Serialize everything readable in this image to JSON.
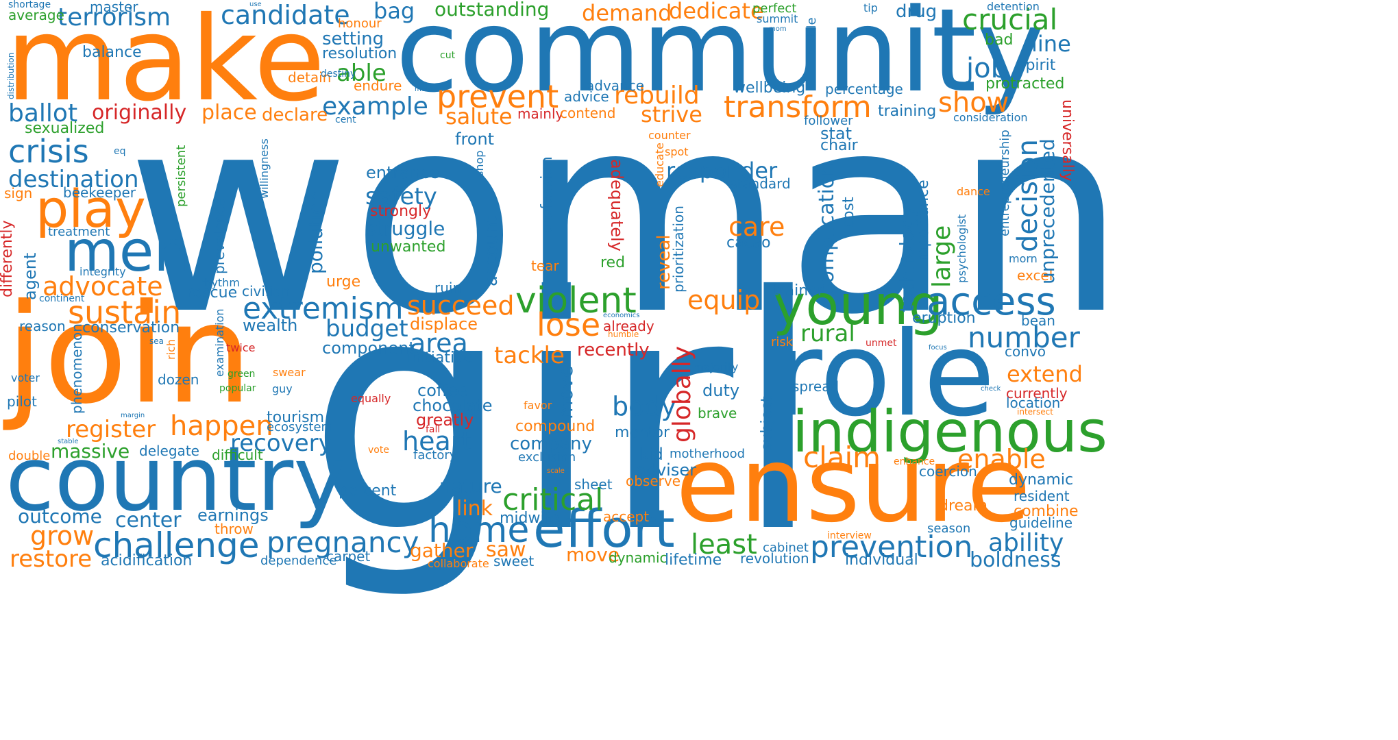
{
  "colors": {
    "blue": "#1f77b4",
    "orange": "#ff7f0e",
    "green": "#2ca02c",
    "red": "#d62728",
    "background": "#ffffff"
  },
  "words": {
    "woman": "woman",
    "girl": "girl",
    "community": "community",
    "make": "make",
    "join": "join",
    "ensure": "ensure",
    "country": "country",
    "role": "role",
    "indigenous": "indigenous",
    "young": "young",
    "effort": "effort",
    "play": "play",
    "men": "men",
    "terrorism": "terrorism",
    "candidate": "candidate",
    "bag": "bag",
    "outstanding": "outstanding",
    "demand": "demand",
    "dedicate": "dedicate",
    "crucial": "crucial",
    "drug": "drug",
    "prevent": "prevent",
    "transform": "transform",
    "rebuild": "rebuild",
    "strive": "strive",
    "show": "show",
    "job": "job",
    "example": "example",
    "salute": "salute",
    "ballot": "ballot",
    "originally": "originally",
    "place": "place",
    "declare": "declare",
    "crisis": "crisis",
    "destination": "destination",
    "advocate": "advocate",
    "sustain": "sustain",
    "extremism": "extremism",
    "succeed": "succeed",
    "violent": "violent",
    "access": "access",
    "lose": "lose",
    "budget": "budget",
    "area": "area",
    "tackle": "tackle",
    "number": "number",
    "happen": "happen",
    "register": "register",
    "massive": "massive",
    "recovery": "recovery",
    "heart": "heart",
    "claim": "claim",
    "enable": "enable",
    "critical": "critical",
    "home": "home",
    "challenge": "challenge",
    "pregnancy": "pregnancy",
    "prevention": "prevention",
    "grow": "grow",
    "restore": "restore",
    "least": "least",
    "ability": "ability",
    "boldness": "boldness",
    "decision": "decision",
    "safety": "safety",
    "struggle": "struggle",
    "responder": "responder",
    "care": "care",
    "equip": "equip",
    "rural": "rural",
    "body": "body",
    "extend": "extend",
    "line": "line",
    "setting": "setting",
    "resolution": "resolution",
    "able": "able",
    "balance": "balance",
    "average": "average",
    "master": "master",
    "shortage": "shortage",
    "use": "use",
    "honour": "honour",
    "perfect": "perfect",
    "summit": "summit",
    "tip": "tip",
    "detention": "detention",
    "textile": "textile",
    "mom": "mom",
    "bad": "bad",
    "spirit": "spirit",
    "protracted": "protracted",
    "cut": "cut",
    "detain": "detain",
    "destiny": "destiny",
    "endure": "endure",
    "mum": "mum",
    "advance": "advance",
    "advice": "advice",
    "wellbeing": "wellbeing",
    "percentage": "percentage",
    "training": "training",
    "consideration": "consideration",
    "follower": "follower",
    "cent": "cent",
    "mainly": "mainly",
    "contend": "contend",
    "sexualized": "sexualized",
    "eq": "eq",
    "front": "front",
    "stat": "stat",
    "chair": "chair",
    "counter": "counter",
    "spot": "spot",
    "educate": "educate",
    "standard": "standard",
    "distribution": "distribution",
    "universally": "universally",
    "entrepreneurship": "entrepreneurship",
    "unprecedented": "unprecedented",
    "willingness": "willingness",
    "beekeeper": "beekeeper",
    "sign": "sign",
    "persistent": "persistent",
    "entrance": "entrance",
    "shop": "shop",
    "strongly": "strongly",
    "unwanted": "unwanted",
    "profession": "profession",
    "adequately": "adequately",
    "pollution": "pollution",
    "account": "account",
    "reveal": "reveal",
    "prioritization": "prioritization",
    "complication": "complication",
    "cost": "cost",
    "cacao": "cacao",
    "technology": "technology",
    "importance": "importance",
    "large": "large",
    "dance": "dance",
    "psychologist": "psychologist",
    "morn": "morn",
    "excel": "excel",
    "treatment": "treatment",
    "differently": "differently",
    "prevalence": "prevalence",
    "integrity": "integrity",
    "agent": "agent",
    "rhythm": "rhythm",
    "civilian": "civilian",
    "rescue": "rescue",
    "continent": "continent",
    "tear": "tear",
    "red": "red",
    "urge": "urge",
    "ruin": "ruin",
    "trainer": "trainer",
    "globally": "globally",
    "eruption": "eruption",
    "bean": "bean",
    "reason": "reason",
    "conservation": "conservation",
    "wealth": "wealth",
    "economics": "economics",
    "already": "already",
    "humble": "humble",
    "displace": "displace",
    "risk": "risk",
    "unmet": "unmet",
    "focus": "focus",
    "convo": "convo",
    "component": "component",
    "initiative": "initiative",
    "recently": "recently",
    "sea": "sea",
    "rich": "rich",
    "twice": "twice",
    "examination": "examination",
    "phenomenon": "phenomenon",
    "green": "green",
    "swear": "swear",
    "dozen": "dozen",
    "popular": "popular",
    "guy": "guy",
    "voter": "voter",
    "pilot": "pilot",
    "equally": "equally",
    "coffee": "coffee",
    "chocolate": "chocolate",
    "greatly": "greatly",
    "move": "move",
    "majority": "majority",
    "duty": "duty",
    "spread": "spread",
    "currently": "currently",
    "location": "location",
    "check": "check",
    "intersect": "intersect",
    "favor": "favor",
    "compound": "compound",
    "brave": "brave",
    "subject": "subject",
    "margin": "margin",
    "tourism": "tourism",
    "ecosystem": "ecosystem",
    "fall": "fall",
    "mentor": "mentor",
    "company": "company",
    "stable": "stable",
    "double": "double",
    "delegate": "delegate",
    "difficult": "difficult",
    "vote": "vote",
    "factory": "factory",
    "exclusion": "exclusion",
    "kid": "kid",
    "motherhood": "motherhood",
    "enhance": "enhance",
    "coercion": "coercion",
    "adviser": "adviser",
    "observe": "observe",
    "scale": "scale",
    "sheet": "sheet",
    "percent": "percent",
    "nature": "nature",
    "dynamic": "dynamic",
    "resident": "resident",
    "link": "link",
    "midwife": "midwife",
    "accept": "accept",
    "dream": "dream",
    "combine": "combine",
    "guideline": "guideline",
    "outcome": "outcome",
    "center": "center",
    "earnings": "earnings",
    "throw": "throw",
    "season": "season",
    "interview": "interview",
    "gather": "gather",
    "saw": "saw",
    "cabinet": "cabinet",
    "acidification": "acidification",
    "dependence": "dependence",
    "carpet": "carpet",
    "collaborate": "collaborate",
    "sweet": "sweet",
    "lifetime": "lifetime",
    "revolution": "revolution",
    "individual": "individual"
  }
}
